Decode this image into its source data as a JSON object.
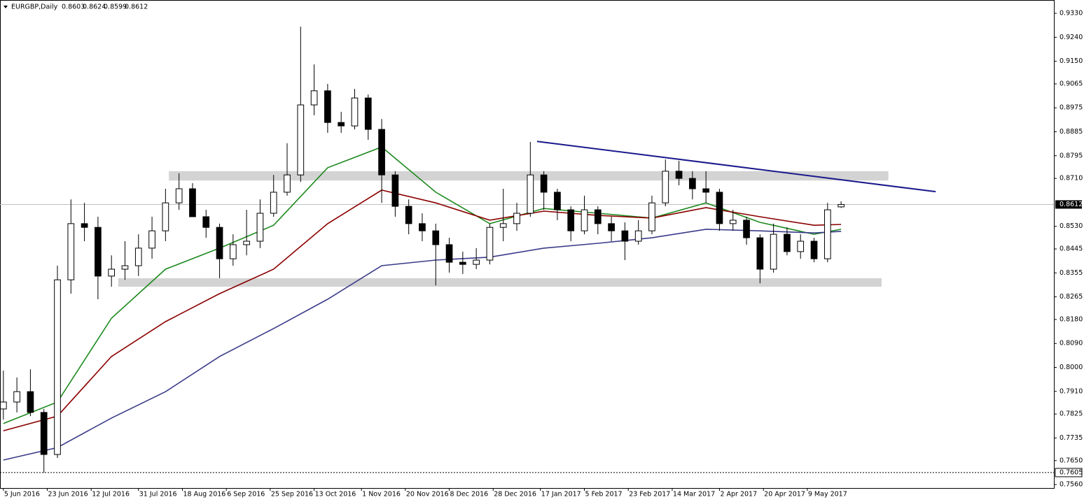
{
  "chart_data": {
    "type": "candlestick",
    "symbol": "EURGBP,Daily",
    "up_color": "#ffffff",
    "down_color": "#000000",
    "edge_color": "#000000",
    "x": [
      0,
      4,
      8,
      12,
      16,
      20,
      24,
      28,
      32,
      36,
      40,
      44,
      48,
      52,
      56,
      60,
      64,
      68,
      72,
      76,
      80,
      84,
      88,
      92,
      96,
      100,
      104,
      108,
      112,
      116,
      120,
      124,
      128,
      132,
      136,
      140,
      144,
      148,
      152,
      156,
      160,
      164,
      168,
      172,
      176,
      180,
      184,
      188,
      192,
      196,
      200,
      204,
      208,
      212,
      216,
      220,
      224,
      228,
      232,
      236,
      240,
      244,
      248
    ],
    "open": [
      0.7844,
      0.787,
      0.7909,
      0.7831,
      0.7673,
      0.8329,
      0.854,
      0.8526,
      0.8343,
      0.8369,
      0.8382,
      0.8448,
      0.8513,
      0.8618,
      0.8671,
      0.8566,
      0.8526,
      0.8408,
      0.8461,
      0.8474,
      0.8579,
      0.8658,
      0.8723,
      0.8986,
      0.9039,
      0.892,
      0.8907,
      0.9012,
      0.8894,
      0.8723,
      0.8605,
      0.854,
      0.8513,
      0.8461,
      0.8395,
      0.8387,
      0.8403,
      0.8526,
      0.854,
      0.8579,
      0.8723,
      0.8658,
      0.8592,
      0.8513,
      0.8592,
      0.854,
      0.8513,
      0.8474,
      0.8513,
      0.8618,
      0.8737,
      0.871,
      0.8671,
      0.8658,
      0.854,
      0.8553,
      0.8487,
      0.8369,
      0.85,
      0.8435,
      0.8474,
      0.8408,
      0.8603
    ],
    "high": [
      0.7988,
      0.7962,
      0.7993,
      0.7844,
      0.8382,
      0.8631,
      0.8618,
      0.8566,
      0.8421,
      0.8474,
      0.85,
      0.8566,
      0.8671,
      0.8729,
      0.8692,
      0.8592,
      0.854,
      0.85,
      0.8592,
      0.8631,
      0.8723,
      0.8842,
      0.928,
      0.9138,
      0.9065,
      0.896,
      0.9046,
      0.9025,
      0.8933,
      0.8737,
      0.8631,
      0.8579,
      0.854,
      0.8487,
      0.8435,
      0.8448,
      0.854,
      0.8671,
      0.8618,
      0.8847,
      0.8737,
      0.8671,
      0.8605,
      0.8645,
      0.8605,
      0.8566,
      0.8545,
      0.8553,
      0.8645,
      0.8781,
      0.8776,
      0.8737,
      0.8737,
      0.8671,
      0.8592,
      0.8566,
      0.85,
      0.854,
      0.8526,
      0.85,
      0.8487,
      0.8618,
      0.8624
    ],
    "low": [
      0.7804,
      0.7831,
      0.7817,
      0.7605,
      0.766,
      0.8277,
      0.8474,
      0.8256,
      0.8303,
      0.8329,
      0.8343,
      0.8408,
      0.8474,
      0.8592,
      0.8566,
      0.8487,
      0.8335,
      0.8382,
      0.8421,
      0.8448,
      0.8566,
      0.8645,
      0.8697,
      0.8947,
      0.8881,
      0.8881,
      0.8894,
      0.8855,
      0.8618,
      0.8566,
      0.85,
      0.8474,
      0.8308,
      0.8356,
      0.8351,
      0.8369,
      0.8387,
      0.8474,
      0.8513,
      0.8566,
      0.8592,
      0.8553,
      0.8474,
      0.85,
      0.85,
      0.8474,
      0.8403,
      0.8461,
      0.85,
      0.8605,
      0.8684,
      0.8631,
      0.8618,
      0.8513,
      0.8513,
      0.8461,
      0.8316,
      0.8356,
      0.8421,
      0.8408,
      0.8395,
      0.8395,
      0.8599
    ],
    "close": [
      0.787,
      0.7909,
      0.7831,
      0.7673,
      0.8329,
      0.854,
      0.8526,
      0.8343,
      0.8369,
      0.8382,
      0.8448,
      0.8513,
      0.8618,
      0.8671,
      0.8566,
      0.8526,
      0.8408,
      0.8461,
      0.8474,
      0.8579,
      0.8658,
      0.8723,
      0.8986,
      0.9039,
      0.892,
      0.8907,
      0.9012,
      0.8894,
      0.8723,
      0.8605,
      0.854,
      0.8513,
      0.8461,
      0.8395,
      0.8387,
      0.8403,
      0.8526,
      0.854,
      0.8579,
      0.8723,
      0.8658,
      0.8592,
      0.8513,
      0.8592,
      0.854,
      0.8513,
      0.8474,
      0.8513,
      0.8618,
      0.8737,
      0.871,
      0.8671,
      0.8658,
      0.854,
      0.8553,
      0.8487,
      0.8369,
      0.85,
      0.8435,
      0.8474,
      0.8408,
      0.8592,
      0.8612
    ],
    "lines": [
      {
        "color": "#1e8a1e",
        "x": [
          0,
          16,
          32,
          48,
          64,
          80,
          96,
          112,
          128,
          144,
          160,
          176,
          192,
          208,
          224,
          240,
          248
        ],
        "values": [
          0.7789,
          0.787,
          0.8185,
          0.8369,
          0.8448,
          0.8534,
          0.875,
          0.8828,
          0.8658,
          0.854,
          0.8597,
          0.8579,
          0.8561,
          0.8618,
          0.8545,
          0.85,
          0.8519
        ]
      },
      {
        "color": "#8b0000",
        "x": [
          0,
          16,
          32,
          48,
          64,
          80,
          96,
          112,
          128,
          144,
          160,
          176,
          192,
          208,
          224,
          240,
          248
        ],
        "values": [
          0.7762,
          0.7817,
          0.8041,
          0.8172,
          0.8277,
          0.8369,
          0.854,
          0.8666,
          0.8618,
          0.8553,
          0.8587,
          0.8571,
          0.8561,
          0.86,
          0.8566,
          0.8534,
          0.8537
        ]
      },
      {
        "color": "#3b3b8a",
        "x": [
          0,
          16,
          32,
          48,
          64,
          80,
          96,
          112,
          128,
          144,
          160,
          176,
          192,
          208,
          224,
          240,
          248
        ],
        "values": [
          0.7652,
          0.7699,
          0.781,
          0.7909,
          0.8041,
          0.8146,
          0.8256,
          0.8382,
          0.8403,
          0.8414,
          0.8448,
          0.8466,
          0.8487,
          0.8519,
          0.8513,
          0.8505,
          0.8511
        ]
      }
    ],
    "trendline": {
      "color": "#1a1a8c",
      "x": [
        158,
        276
      ],
      "values": [
        0.8849,
        0.866
      ]
    },
    "zones": [
      {
        "color": "#d3d3d3",
        "x": [
          49,
          262
        ],
        "values": [
          0.8702,
          0.8737
        ]
      },
      {
        "color": "#d3d3d3",
        "x": [
          34,
          260
        ],
        "values": [
          0.8303,
          0.8335
        ]
      }
    ],
    "level_line": 0.7605,
    "xlim": [
      -1,
      311
    ],
    "ylim": [
      0.7547,
      0.938
    ],
    "xticks": [
      {
        "value": 0,
        "label": "5 Jun 2016"
      },
      {
        "value": 13,
        "label": "23 Jun 2016"
      },
      {
        "value": 26,
        "label": "12 Jul 2016"
      },
      {
        "value": 40,
        "label": "31 Jul 2016"
      },
      {
        "value": 53,
        "label": "18 Aug 2016"
      },
      {
        "value": 66,
        "label": "6 Sep 2016"
      },
      {
        "value": 79,
        "label": "25 Sep 2016"
      },
      {
        "value": 92,
        "label": "13 Oct 2016"
      },
      {
        "value": 106,
        "label": "1 Nov 2016"
      },
      {
        "value": 119,
        "label": "20 Nov 2016"
      },
      {
        "value": 132,
        "label": "8 Dec 2016"
      },
      {
        "value": 145,
        "label": "28 Dec 2016"
      },
      {
        "value": 159,
        "label": "17 Jan 2017"
      },
      {
        "value": 172,
        "label": "5 Feb 2017"
      },
      {
        "value": 185,
        "label": "23 Feb 2017"
      },
      {
        "value": 198,
        "label": "14 Mar 2017"
      },
      {
        "value": 212,
        "label": "2 Apr 2017"
      },
      {
        "value": 225,
        "label": "20 Apr 2017"
      },
      {
        "value": 238,
        "label": "9 May 2017"
      }
    ],
    "yticks": [
      {
        "value": 0.933,
        "label": "0.9330"
      },
      {
        "value": 0.924,
        "label": "0.9240"
      },
      {
        "value": 0.915,
        "label": "0.9150"
      },
      0.9065,
      0.8975,
      0.8885,
      0.8795,
      {
        "value": 0.871,
        "label": "0.8710"
      },
      {
        "value": 0.853,
        "label": "0.8530"
      },
      0.8445,
      0.8355,
      0.8265,
      {
        "value": 0.818,
        "label": "0.8180"
      },
      {
        "value": 0.809,
        "label": "0.8090"
      },
      {
        "value": 0.8,
        "label": "0.8000"
      },
      {
        "value": 0.791,
        "label": "0.7910"
      },
      0.7825,
      0.7735,
      {
        "value": 0.765,
        "label": "0.7650"
      },
      {
        "value": 0.756,
        "label": "0.7560"
      }
    ]
  }
}
